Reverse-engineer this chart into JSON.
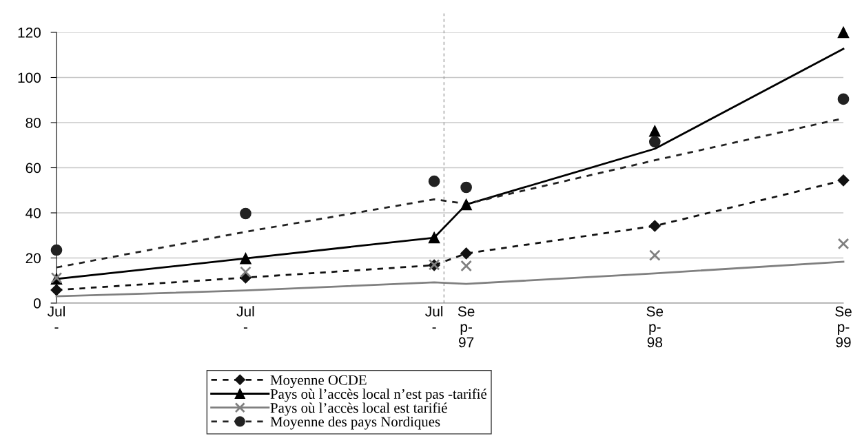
{
  "chart_data": {
    "type": "line",
    "x": [
      "1995-07",
      "1996-07",
      "1997-07",
      "1997-09",
      "1998-09",
      "1999-09"
    ],
    "xlim": [
      "1995-07",
      "1999-09"
    ],
    "xticks": [
      {
        "value": "1995-07",
        "label": "Jul\n-"
      },
      {
        "value": "1996-07",
        "label": "Jul\n-"
      },
      {
        "value": "1997-07",
        "label": "Jul\n-"
      },
      {
        "value": "1997-09",
        "label": "Se\np-\n97"
      },
      {
        "value": "1998-09",
        "label": "Se\np-\n98"
      },
      {
        "value": "1999-09",
        "label": "Se\np-\n99"
      }
    ],
    "ylim": [
      0,
      120
    ],
    "yticks": [
      0,
      20,
      40,
      60,
      80,
      100,
      120
    ],
    "grid": "y",
    "legend": "bottom",
    "ref_lines": [
      {
        "axis": "x",
        "value": "1997-07-20",
        "color": "#a0a0a0",
        "line_style": "dashed"
      }
    ],
    "series": [
      {
        "name": "Moyenne OCDE",
        "marker": "diamond",
        "line_style": "dashed",
        "color": "#111111",
        "values": [
          5.8,
          11.3,
          16.8,
          22,
          34.2,
          54.4
        ]
      },
      {
        "name": "Pays où l’accès local n’est pas -tarifié",
        "type": "scatter",
        "marker": "triangle",
        "line_style": "solid",
        "color": "#000000",
        "values": [
          10.7,
          19.8,
          29,
          43.7,
          76.3,
          120
        ]
      },
      {
        "marker": "none",
        "line_style": "solid",
        "color": "#000000",
        "values": [
          10.7,
          19.8,
          29,
          43.7,
          68.4,
          112.7
        ]
      },
      {
        "name": "Pays où l’accès local est tarifié",
        "type": "scatter",
        "marker": "cross",
        "line_style": "solid",
        "color": "#808080",
        "values": [
          11.2,
          13.8,
          17,
          16.5,
          21.2,
          26.3
        ]
      },
      {
        "marker": "none",
        "line_style": "solid",
        "color": "#808080",
        "values": [
          3,
          5.6,
          9.2,
          8.5,
          13.2,
          18.3
        ]
      },
      {
        "name": "Moyenne des pays Nordiques",
        "type": "scatter",
        "marker": "circle",
        "line_style": "dashed",
        "color": "#222222",
        "values": [
          23.5,
          39.7,
          54,
          51.3,
          71.5,
          90.4
        ]
      },
      {
        "marker": "none",
        "line_style": "dashed",
        "color": "#222222",
        "values": [
          15.8,
          31.6,
          46,
          44,
          63.3,
          81.9
        ]
      }
    ]
  }
}
